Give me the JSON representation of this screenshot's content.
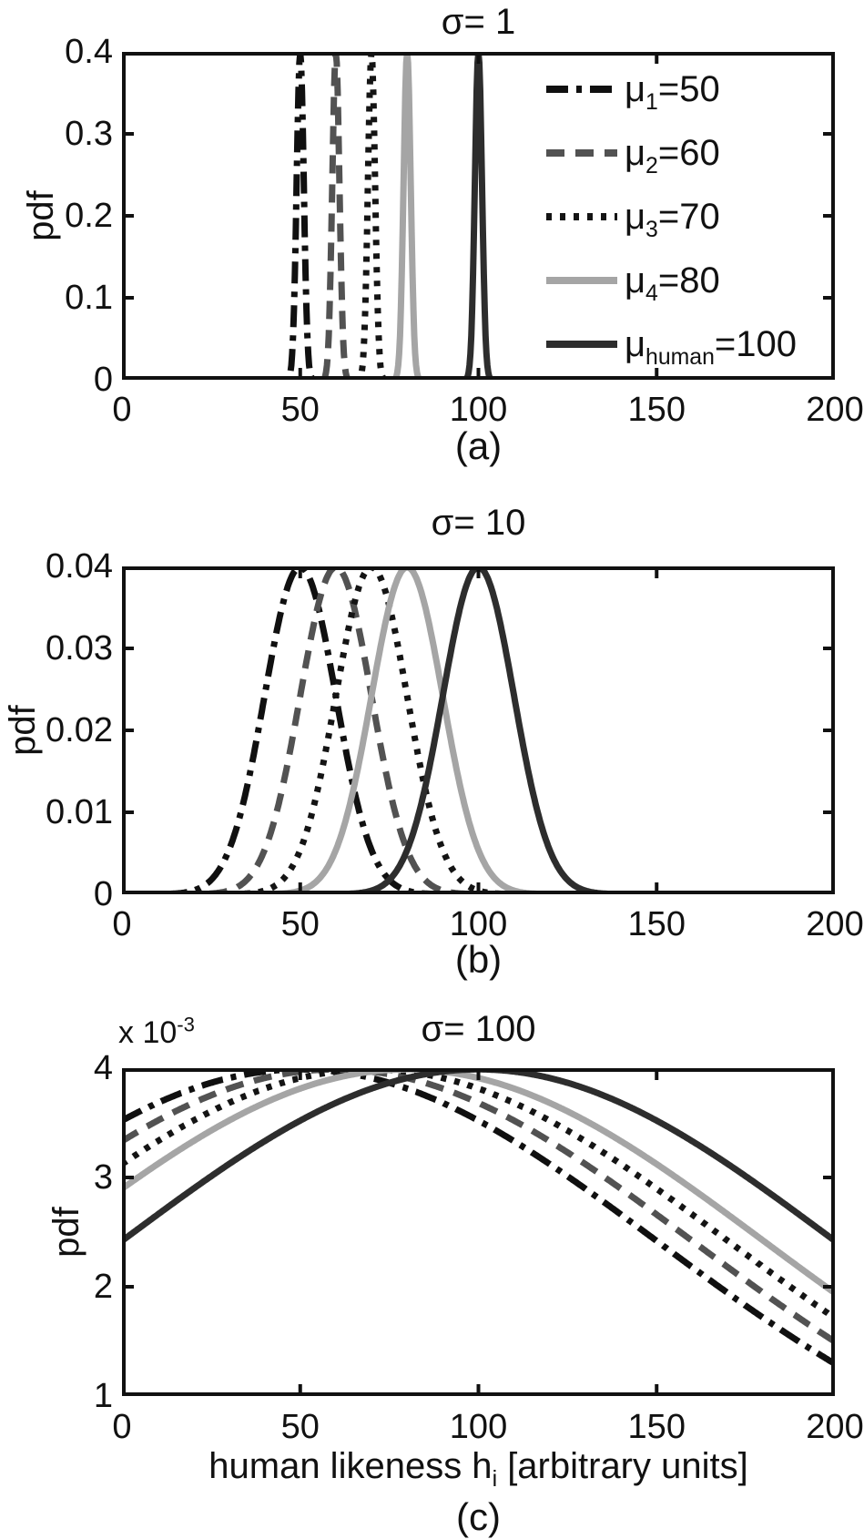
{
  "figure": {
    "background": "#ffffff",
    "text_color": "#111111",
    "axis_color": "#111111"
  },
  "legend": {
    "entries": [
      {
        "mu": "μ",
        "sub": "1",
        "value": "=50",
        "color": "#101010",
        "dash": "dashdot"
      },
      {
        "mu": "μ",
        "sub": "2",
        "value": "=60",
        "color": "#525252",
        "dash": "dashed"
      },
      {
        "mu": "μ",
        "sub": "3",
        "value": "=70",
        "color": "#141414",
        "dash": "dotted"
      },
      {
        "mu": "μ",
        "sub": "4",
        "value": "=80",
        "color": "#a5a5a5",
        "dash": "solid"
      },
      {
        "mu": "μ",
        "sub": "human",
        "value": "=100",
        "color": "#2d2d2d",
        "dash": "solid"
      }
    ]
  },
  "chart_data": [
    {
      "type": "line",
      "title": "σ= 1",
      "sublabel": "(a)",
      "ylabel": "pdf",
      "curve": "gaussian_pdf",
      "sigma": 1,
      "xlim": [
        0,
        200
      ],
      "ylim": [
        0,
        0.4
      ],
      "xticks": [
        0,
        50,
        100,
        150,
        200
      ],
      "ytick_labels": [
        "0",
        "0.1",
        "0.2",
        "0.3",
        "0.4"
      ],
      "grid": false,
      "legend_position": "upper right",
      "series": [
        {
          "name": "μ1=50",
          "mean": 50,
          "sigma": 1,
          "peak_pdf": 0.3989,
          "color": "#101010",
          "dash": "dashdot"
        },
        {
          "name": "μ2=60",
          "mean": 60,
          "sigma": 1,
          "peak_pdf": 0.3989,
          "color": "#525252",
          "dash": "dashed"
        },
        {
          "name": "μ3=70",
          "mean": 70,
          "sigma": 1,
          "peak_pdf": 0.3989,
          "color": "#141414",
          "dash": "dotted"
        },
        {
          "name": "μ4=80",
          "mean": 80,
          "sigma": 1,
          "peak_pdf": 0.3989,
          "color": "#a5a5a5",
          "dash": "solid"
        },
        {
          "name": "μhuman=100",
          "mean": 100,
          "sigma": 1,
          "peak_pdf": 0.3989,
          "color": "#2d2d2d",
          "dash": "solid"
        }
      ]
    },
    {
      "type": "line",
      "title": "σ= 10",
      "sublabel": "(b)",
      "ylabel": "pdf",
      "curve": "gaussian_pdf",
      "sigma": 10,
      "xlim": [
        0,
        200
      ],
      "ylim": [
        0,
        0.04
      ],
      "xticks": [
        0,
        50,
        100,
        150,
        200
      ],
      "ytick_labels": [
        "0",
        "0.01",
        "0.02",
        "0.03",
        "0.04"
      ],
      "grid": false,
      "series": [
        {
          "name": "μ1=50",
          "mean": 50,
          "sigma": 10,
          "peak_pdf": 0.03989,
          "color": "#101010",
          "dash": "dashdot"
        },
        {
          "name": "μ2=60",
          "mean": 60,
          "sigma": 10,
          "peak_pdf": 0.03989,
          "color": "#525252",
          "dash": "dashed"
        },
        {
          "name": "μ3=70",
          "mean": 70,
          "sigma": 10,
          "peak_pdf": 0.03989,
          "color": "#141414",
          "dash": "dotted"
        },
        {
          "name": "μ4=80",
          "mean": 80,
          "sigma": 10,
          "peak_pdf": 0.03989,
          "color": "#a5a5a5",
          "dash": "solid"
        },
        {
          "name": "μhuman=100",
          "mean": 100,
          "sigma": 10,
          "peak_pdf": 0.03989,
          "color": "#2d2d2d",
          "dash": "solid"
        }
      ]
    },
    {
      "type": "line",
      "title": "σ= 100",
      "sublabel": "(c)",
      "ylabel": "pdf",
      "xlabel": "human likeness h_i [arbitrary units]",
      "xlabel_parts": {
        "pre": "human likeness h",
        "sub": "i",
        "post": " [arbitrary units]"
      },
      "y_scale": {
        "base": "x 10",
        "exp": "-3"
      },
      "curve": "gaussian_pdf",
      "sigma": 100,
      "xlim": [
        0,
        200
      ],
      "ylim": [
        0.001,
        0.004
      ],
      "xticks": [
        0,
        50,
        100,
        150,
        200
      ],
      "ytick_labels": [
        "1",
        "2",
        "3",
        "4"
      ],
      "grid": false,
      "series": [
        {
          "name": "μ1=50",
          "mean": 50,
          "sigma": 100,
          "peak_pdf": 0.003989,
          "y_at_x0": 0.00352,
          "y_at_x200": 0.0013,
          "color": "#101010",
          "dash": "dashdot"
        },
        {
          "name": "μ2=60",
          "mean": 60,
          "sigma": 100,
          "peak_pdf": 0.003989,
          "y_at_x0": 0.00333,
          "y_at_x200": 0.0015,
          "color": "#525252",
          "dash": "dashed"
        },
        {
          "name": "μ3=70",
          "mean": 70,
          "sigma": 100,
          "peak_pdf": 0.003989,
          "y_at_x0": 0.00312,
          "y_at_x200": 0.00171,
          "color": "#141414",
          "dash": "dotted"
        },
        {
          "name": "μ4=80",
          "mean": 80,
          "sigma": 100,
          "peak_pdf": 0.003989,
          "y_at_x0": 0.0029,
          "y_at_x200": 0.00194,
          "color": "#a5a5a5",
          "dash": "solid"
        },
        {
          "name": "μhuman=100",
          "mean": 100,
          "sigma": 100,
          "peak_pdf": 0.003989,
          "y_at_x0": 0.00242,
          "y_at_x200": 0.00242,
          "color": "#2d2d2d",
          "dash": "solid"
        }
      ]
    }
  ]
}
